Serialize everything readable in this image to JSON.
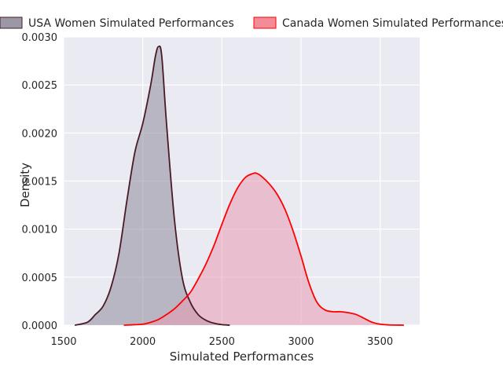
{
  "chart_data": {
    "type": "area",
    "xlabel": "Simulated Performances",
    "ylabel": "Density",
    "xlim": [
      1500,
      3750
    ],
    "ylim": [
      0,
      0.003
    ],
    "xticks": [
      1500,
      2000,
      2500,
      3000,
      3500
    ],
    "xtick_labels": [
      "1500",
      "2000",
      "2500",
      "3000",
      "3500"
    ],
    "yticks": [
      0,
      0.0005,
      0.001,
      0.0015,
      0.002,
      0.0025,
      0.003
    ],
    "ytick_labels": [
      "0.0000",
      "0.0005",
      "0.0010",
      "0.0015",
      "0.0020",
      "0.0025",
      "0.0030"
    ],
    "grid": true,
    "legend_placement": "top, above plot, 2 columns",
    "background": "#eaeaf2",
    "series": [
      {
        "name": "USA Women Simulated Performances",
        "line_color": "#4a1a24",
        "fill_color": "#8f8b9d",
        "legend_fill": "#9a97a6",
        "x": [
          1570,
          1650,
          1700,
          1750,
          1800,
          1850,
          1900,
          1950,
          2000,
          2050,
          2080,
          2100,
          2120,
          2150,
          2200,
          2250,
          2300,
          2350,
          2400,
          2450,
          2500,
          2550
        ],
        "y": [
          0.0,
          3e-05,
          0.00011,
          0.0002,
          0.0004,
          0.00075,
          0.0013,
          0.0018,
          0.0021,
          0.0025,
          0.0028,
          0.0029,
          0.0028,
          0.0021,
          0.0011,
          0.00049,
          0.00024,
          0.00011,
          5e-05,
          2e-05,
          5e-06,
          0.0
        ]
      },
      {
        "name": "Canada Women Simulated Performances",
        "line_color": "#ff0000",
        "fill_color": "#e89bb3",
        "legend_fill": "#f28c99",
        "x": [
          1880,
          1950,
          2000,
          2050,
          2100,
          2150,
          2200,
          2250,
          2300,
          2350,
          2400,
          2450,
          2500,
          2550,
          2600,
          2650,
          2700,
          2720,
          2750,
          2800,
          2850,
          2900,
          2950,
          3000,
          3050,
          3100,
          3150,
          3200,
          3250,
          3300,
          3350,
          3400,
          3450,
          3500,
          3550,
          3600,
          3650
        ],
        "y": [
          0.0,
          5e-06,
          1e-05,
          3e-05,
          6e-05,
          0.00011,
          0.00017,
          0.00025,
          0.00034,
          0.00048,
          0.00064,
          0.00083,
          0.00105,
          0.00126,
          0.00143,
          0.00154,
          0.00158,
          0.00158,
          0.00155,
          0.00147,
          0.00136,
          0.0012,
          0.00098,
          0.00072,
          0.00044,
          0.00024,
          0.00016,
          0.00014,
          0.00014,
          0.00013,
          0.00011,
          7e-05,
          3e-05,
          1e-05,
          3e-06,
          1e-06,
          0.0
        ]
      }
    ]
  }
}
